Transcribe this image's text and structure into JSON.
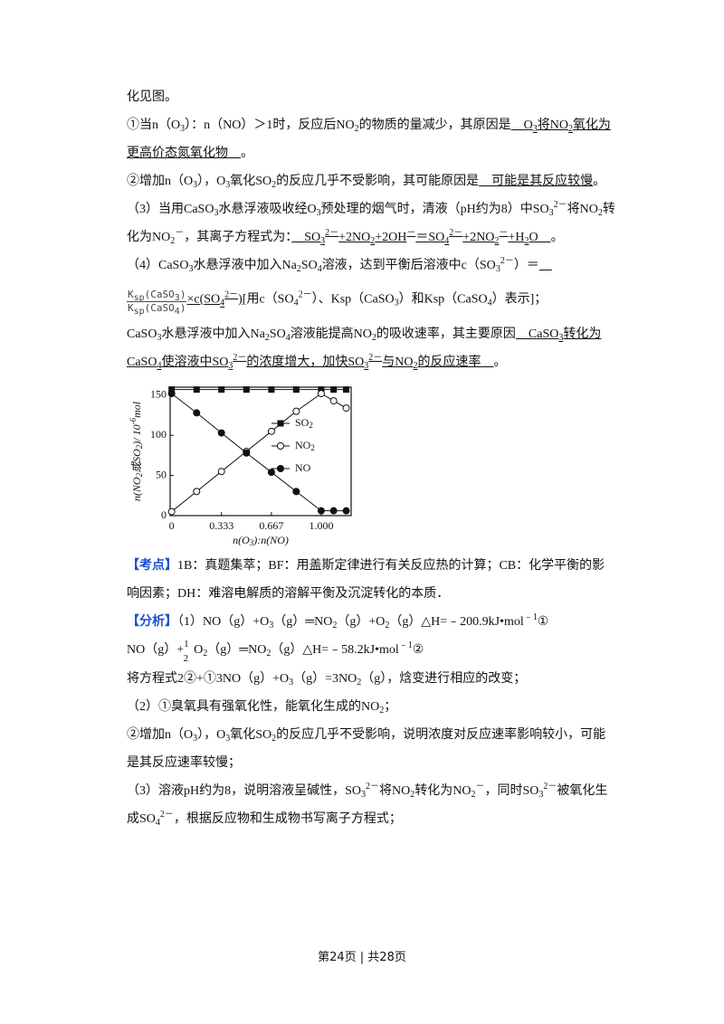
{
  "before_chart": [
    {
      "runs": [
        {
          "text": "化见图。"
        }
      ]
    },
    {
      "runs": [
        {
          "text": "①当n（O"
        },
        {
          "text": "3",
          "style": "sub"
        },
        {
          "text": "）：n（NO）＞1时，反应后NO"
        },
        {
          "text": "2",
          "style": "sub"
        },
        {
          "text": "的物质的量减少，其原因是"
        },
        {
          "text": "　O",
          "style": "u"
        },
        {
          "text": "3",
          "style": "u-sub"
        },
        {
          "text": "将NO",
          "style": "u"
        },
        {
          "text": "2",
          "style": "u-sub"
        },
        {
          "text": "氧化为更高价态氮氧化物　",
          "style": "u"
        },
        {
          "text": "。"
        }
      ]
    },
    {
      "runs": [
        {
          "text": "②增加n（O"
        },
        {
          "text": "3",
          "style": "sub"
        },
        {
          "text": "），O"
        },
        {
          "text": "3",
          "style": "sub"
        },
        {
          "text": "氧化SO"
        },
        {
          "text": "2",
          "style": "sub"
        },
        {
          "text": "的反应几乎不受影响，其可能原因是"
        },
        {
          "text": "　可能是其反应较慢",
          "style": "u"
        },
        {
          "text": "。"
        }
      ]
    },
    {
      "runs": [
        {
          "text": "（3）当用CaSO"
        },
        {
          "text": "3",
          "style": "sub"
        },
        {
          "text": "水悬浮液吸收经O"
        },
        {
          "text": "3",
          "style": "sub"
        },
        {
          "text": "预处理的烟气时，清液（pH约为8）中SO"
        },
        {
          "text": "3",
          "style": "sub"
        },
        {
          "text": "2－",
          "style": "sup"
        },
        {
          "text": "将NO"
        },
        {
          "text": "2",
          "style": "sub"
        },
        {
          "text": "转化为NO"
        },
        {
          "text": "2",
          "style": "sub"
        },
        {
          "text": "－",
          "style": "sup"
        },
        {
          "text": "，其离子方程式为："
        },
        {
          "text": "　SO",
          "style": "u"
        },
        {
          "text": "3",
          "style": "u-sub"
        },
        {
          "text": "2－",
          "style": "u-sup"
        },
        {
          "text": "+2NO",
          "style": "u"
        },
        {
          "text": "2",
          "style": "u-sub"
        },
        {
          "text": "+2OH",
          "style": "u"
        },
        {
          "text": "－",
          "style": "u-sup"
        },
        {
          "text": "＝SO",
          "style": "u"
        },
        {
          "text": "4",
          "style": "u-sub"
        },
        {
          "text": "2－",
          "style": "u-sup"
        },
        {
          "text": "+2NO",
          "style": "u"
        },
        {
          "text": "2",
          "style": "u-sub"
        },
        {
          "text": "－",
          "style": "u-sup"
        },
        {
          "text": "+H",
          "style": "u"
        },
        {
          "text": "2",
          "style": "u-sub"
        },
        {
          "text": "O　",
          "style": "u"
        },
        {
          "text": "。"
        }
      ]
    },
    {
      "runs": [
        {
          "text": "（4）CaSO"
        },
        {
          "text": "3",
          "style": "sub"
        },
        {
          "text": "水悬浮液中加入Na"
        },
        {
          "text": "2",
          "style": "sub"
        },
        {
          "text": "SO"
        },
        {
          "text": "4",
          "style": "sub"
        },
        {
          "text": "溶液，达到平衡后溶液中c（SO"
        },
        {
          "text": "3",
          "style": "sub"
        },
        {
          "text": "2－",
          "style": "sup"
        },
        {
          "text": "）＝"
        },
        {
          "text": "　",
          "style": "u"
        }
      ]
    },
    {
      "fraction": {
        "numerator": [
          {
            "text": "K"
          },
          {
            "text": "sp",
            "style": "sub"
          },
          {
            "text": "(CaSO"
          },
          {
            "text": "3",
            "style": "sub"
          },
          {
            "text": ")"
          }
        ],
        "denominator": [
          {
            "text": "K"
          },
          {
            "text": "sp",
            "style": "sub"
          },
          {
            "text": "(CaSO"
          },
          {
            "text": "4",
            "style": "sub"
          },
          {
            "text": ")"
          }
        ]
      },
      "runs": [
        {
          "text": "×c(SO",
          "style": "u"
        },
        {
          "text": "4",
          "style": "u-sub"
        },
        {
          "text": "2－",
          "style": "u-sup"
        },
        {
          "text": ")",
          "style": "u"
        },
        {
          "text": "[用c（SO"
        },
        {
          "text": "4",
          "style": "sub"
        },
        {
          "text": "2－",
          "style": "sup"
        },
        {
          "text": "）、Ksp（CaSO"
        },
        {
          "text": "3",
          "style": "sub"
        },
        {
          "text": "）和Ksp（CaSO"
        },
        {
          "text": "4",
          "style": "sub"
        },
        {
          "text": "）表示]；"
        }
      ]
    },
    {
      "runs": [
        {
          "text": "CaSO"
        },
        {
          "text": "3",
          "style": "sub"
        },
        {
          "text": "水悬浮液中加入Na"
        },
        {
          "text": "2",
          "style": "sub"
        },
        {
          "text": "SO"
        },
        {
          "text": "4",
          "style": "sub"
        },
        {
          "text": "溶液能提高NO"
        },
        {
          "text": "2",
          "style": "sub"
        },
        {
          "text": "的吸收速率，其主要原因"
        },
        {
          "text": "　CaSO",
          "style": "u"
        },
        {
          "text": "3",
          "style": "u-sub"
        },
        {
          "text": "转化为CaSO",
          "style": "u"
        },
        {
          "text": "4",
          "style": "u-sub"
        },
        {
          "text": "使溶液中SO",
          "style": "u"
        },
        {
          "text": "3",
          "style": "u-sub"
        },
        {
          "text": "2－",
          "style": "u-sup"
        },
        {
          "text": "的浓度增大，加快SO",
          "style": "u"
        },
        {
          "text": "3",
          "style": "u-sub"
        },
        {
          "text": "2－",
          "style": "u-sup"
        },
        {
          "text": "与NO",
          "style": "u"
        },
        {
          "text": "2",
          "style": "u-sub"
        },
        {
          "text": "的反应速率　",
          "style": "u"
        },
        {
          "text": "。"
        }
      ]
    }
  ],
  "chart_data": {
    "type": "line",
    "x_label": [
      {
        "text": "n(O"
      },
      {
        "text": "3",
        "style": "sub"
      },
      {
        "text": "):n(NO)"
      }
    ],
    "y_label": [
      {
        "text": "n(NO"
      },
      {
        "text": "2",
        "style": "sub"
      },
      {
        "text": "或SO"
      },
      {
        "text": "2",
        "style": "sub"
      },
      {
        "text": ")/ 10"
      },
      {
        "text": "-6",
        "style": "sup"
      },
      {
        "text": "mol"
      }
    ],
    "x": [
      0,
      0.167,
      0.333,
      0.5,
      0.667,
      0.833,
      1.0,
      1.083,
      1.167
    ],
    "series": [
      {
        "name": "SO2",
        "color": "#111111",
        "marker": "square",
        "values": [
          157,
          157,
          157,
          157,
          157,
          157,
          157,
          157,
          157
        ]
      },
      {
        "name": "NO2",
        "color": "#111111",
        "marker": "circle-open",
        "values": [
          5,
          30,
          55,
          80,
          105,
          130,
          152,
          143,
          134
        ]
      },
      {
        "name": "NO",
        "color": "#111111",
        "marker": "circle",
        "values": [
          152,
          128,
          103,
          78,
          54,
          30,
          6,
          6,
          6
        ]
      }
    ],
    "xlim": [
      -0.01,
      1.2
    ],
    "ylim": [
      0,
      160
    ],
    "xticks": [
      0,
      0.333,
      0.667,
      {
        "value": 1,
        "label": "1.000"
      }
    ],
    "yticks": [
      0,
      50,
      100,
      150
    ]
  },
  "after_chart": [
    {
      "runs": [
        {
          "text": "【考点】",
          "style": "blue"
        },
        {
          "text": "1B：真题集萃；BF：用盖斯定律进行有关反应热的计算；CB：化学平衡的影响因素；DH：难溶电解质的溶解平衡及沉淀转化的本质．"
        }
      ]
    },
    {
      "runs": [
        {
          "text": "【分析】",
          "style": "blue"
        },
        {
          "text": "（1）NO（g）+O"
        },
        {
          "text": "3",
          "style": "sub"
        },
        {
          "text": "（g）═NO"
        },
        {
          "text": "2",
          "style": "sub"
        },
        {
          "text": "（g）+O"
        },
        {
          "text": "2",
          "style": "sub"
        },
        {
          "text": "（g）△H=﹣200.9kJ•mol"
        },
        {
          "text": "﹣1",
          "style": "sup"
        },
        {
          "text": "①"
        }
      ]
    },
    {
      "runs": [
        {
          "text": "NO（g）+"
        },
        {
          "text": "1",
          "style": "num"
        },
        {
          "text": "2",
          "style": "den"
        },
        {
          "text": "O"
        },
        {
          "text": "2",
          "style": "sub"
        },
        {
          "text": "（g）═NO"
        },
        {
          "text": "2",
          "style": "sub"
        },
        {
          "text": "（g）△H=﹣58.2kJ•mol"
        },
        {
          "text": "﹣1",
          "style": "sup"
        },
        {
          "text": "②"
        }
      ]
    },
    {
      "runs": [
        {
          "text": "将方程式2②+①3NO（g）+O"
        },
        {
          "text": "3",
          "style": "sub"
        },
        {
          "text": "（g）=3NO"
        },
        {
          "text": "2",
          "style": "sub"
        },
        {
          "text": "（g），焓变进行相应的改变；"
        }
      ]
    },
    {
      "runs": [
        {
          "text": "（2）①臭氧具有强氧化性，能氧化生成的NO"
        },
        {
          "text": "2",
          "style": "sub"
        },
        {
          "text": "；"
        }
      ]
    },
    {
      "runs": [
        {
          "text": "②增加n（O"
        },
        {
          "text": "3",
          "style": "sub"
        },
        {
          "text": "），O"
        },
        {
          "text": "3",
          "style": "sub"
        },
        {
          "text": "氧化SO"
        },
        {
          "text": "2",
          "style": "sub"
        },
        {
          "text": "的反应几乎不受影响，说明浓度对反应速率影响较小，可能是其反应速率较慢；"
        }
      ]
    },
    {
      "runs": [
        {
          "text": "（3）溶液pH约为8，说明溶液呈碱性，SO"
        },
        {
          "text": "3",
          "style": "sub"
        },
        {
          "text": "2－",
          "style": "sup"
        },
        {
          "text": "将NO"
        },
        {
          "text": "2",
          "style": "sub"
        },
        {
          "text": "转化为NO"
        },
        {
          "text": "2",
          "style": "sub"
        },
        {
          "text": "－",
          "style": "sup"
        },
        {
          "text": "，同时SO"
        },
        {
          "text": "3",
          "style": "sub"
        },
        {
          "text": "2－",
          "style": "sup"
        },
        {
          "text": "被氧化生成SO"
        },
        {
          "text": "4",
          "style": "sub"
        },
        {
          "text": "2－",
          "style": "sup"
        },
        {
          "text": "，根据反应物和生成物书写离子方程式；"
        }
      ]
    }
  ],
  "footer": "第24页 | 共28页"
}
